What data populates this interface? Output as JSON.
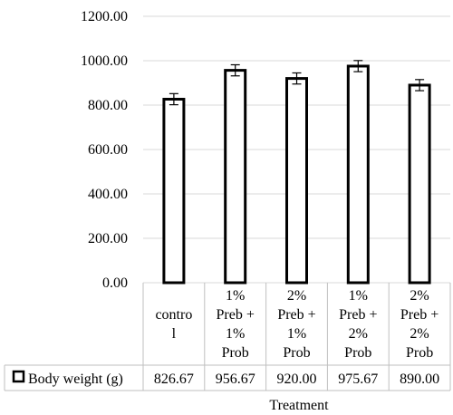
{
  "chart_data": {
    "type": "bar",
    "categories": [
      [
        "contro",
        "l"
      ],
      [
        "1%",
        "Preb +",
        "1%",
        "Prob"
      ],
      [
        "2%",
        "Preb +",
        "1%",
        "Prob"
      ],
      [
        "1%",
        "Preb +",
        "2%",
        "Prob"
      ],
      [
        "2%",
        "Preb +",
        "2%",
        "Prob"
      ]
    ],
    "series": [
      {
        "name": "Body weight (g)",
        "values": [
          826.67,
          956.67,
          920.0,
          975.67,
          890.0
        ],
        "value_labels": [
          "826.67",
          "956.67",
          "920.00",
          "975.67",
          "890.00"
        ],
        "error": [
          25,
          25,
          25,
          25,
          25
        ]
      }
    ],
    "xlabel": "Treatment",
    "ylim": [
      0,
      1200
    ],
    "yticks": [
      0,
      200,
      400,
      600,
      800,
      1000,
      1200
    ],
    "ytick_labels": [
      "0.00",
      "200.00",
      "400.00",
      "600.00",
      "800.00",
      "1000.00",
      "1200.00"
    ],
    "grid": true,
    "legend": "data-table-left",
    "colors": {
      "bar_fill": "#ffffff",
      "bar_stroke": "#000000",
      "grid": "#d9d9d9",
      "table_border": "#bfbfbf"
    }
  }
}
